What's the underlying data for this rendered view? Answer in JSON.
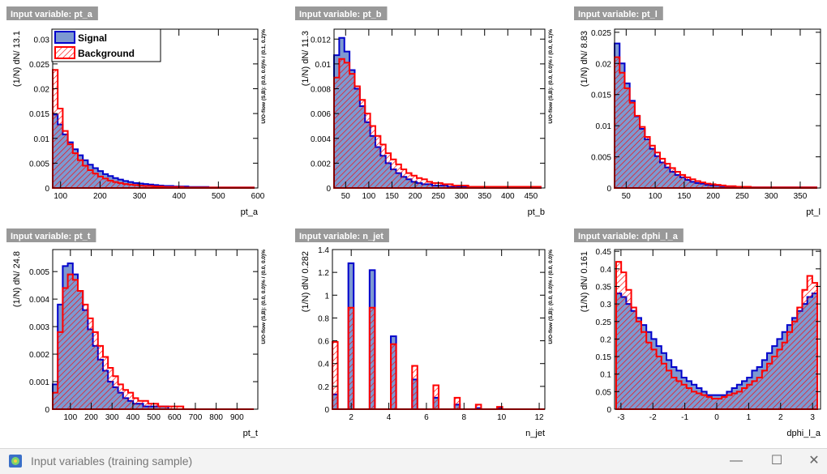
{
  "window": {
    "title": "Input variables (training sample)",
    "minimize_label": "—",
    "maximize_label": "☐",
    "close_label": "✕"
  },
  "colors": {
    "signal_fill": "#7d99d1",
    "signal_line": "#0000cc",
    "background_line": "#ff0000",
    "hatch": "#ff0000",
    "title_bar": "#999999"
  },
  "legend": {
    "signal": "Signal",
    "background": "Background"
  },
  "chart_data": [
    {
      "type": "bar",
      "title": "Input variable: pt_a",
      "xlabel": "pt_a",
      "ylabel": "(1/N) dN/ 13.1",
      "overflow_label": "U/O-flow (S,B): (0.0, 0.0)% / (0.1, 0.2)%",
      "xlim": [
        80,
        600
      ],
      "ylim": [
        0,
        0.032
      ],
      "xticks": [
        "100",
        "200",
        "300",
        "400",
        "500",
        "600"
      ],
      "yticks": [
        "0",
        "0.005",
        "0.01",
        "0.015",
        "0.02",
        "0.025",
        "0.03"
      ],
      "signal": [
        0.0148,
        0.0128,
        0.0108,
        0.0092,
        0.0078,
        0.0066,
        0.0056,
        0.0047,
        0.004,
        0.0034,
        0.0028,
        0.0024,
        0.002,
        0.0017,
        0.0014,
        0.0012,
        0.001,
        0.0009,
        0.0008,
        0.0007,
        0.0006,
        0.0005,
        0.0004,
        0.0004,
        0.0003,
        0.0003,
        0.0003,
        0.0002,
        0.0002,
        0.0002,
        0.0002,
        0.0001,
        0.0001,
        0.0001,
        0.0001,
        0.0001,
        0.0001,
        0.0001,
        0.0001,
        0.0001
      ],
      "background": [
        0.0238,
        0.016,
        0.0115,
        0.0088,
        0.007,
        0.0056,
        0.0045,
        0.0036,
        0.0029,
        0.0023,
        0.0019,
        0.0015,
        0.0012,
        0.001,
        0.0008,
        0.0007,
        0.0006,
        0.0005,
        0.0004,
        0.0004,
        0.0003,
        0.0003,
        0.0002,
        0.0002,
        0.0002,
        0.0002,
        0.0001,
        0.0001,
        0.0001,
        0.0001,
        0.0001,
        0.0001,
        0.0001,
        0.0001,
        0.0001,
        0.0001,
        0.0001,
        0.0001,
        0.0001,
        0.0001
      ]
    },
    {
      "type": "bar",
      "title": "Input variable: pt_b",
      "xlabel": "pt_b",
      "ylabel": "(1/N) dN/ 11.3",
      "overflow_label": "U/O-flow (S,B): (0.0, 0.0)% / (0.0, 0.1)%",
      "xlim": [
        25,
        480
      ],
      "ylim": [
        0,
        0.0128
      ],
      "xticks": [
        "50",
        "100",
        "150",
        "200",
        "250",
        "300",
        "350",
        "400",
        "450"
      ],
      "yticks": [
        "0",
        "0.002",
        "0.004",
        "0.006",
        "0.008",
        "0.01",
        "0.012"
      ],
      "signal": [
        0.0107,
        0.0121,
        0.011,
        0.0095,
        0.008,
        0.0066,
        0.0053,
        0.0042,
        0.0033,
        0.0026,
        0.002,
        0.0015,
        0.0012,
        0.0009,
        0.0007,
        0.0005,
        0.0004,
        0.0003,
        0.0003,
        0.0002,
        0.0002,
        0.0002,
        0.0001,
        0.0001,
        0.0001,
        0.0001,
        0.0001,
        0.0001,
        0.0001,
        0.0001,
        0.0001,
        0.0001,
        0.0001,
        0.0001,
        0.0001,
        0.0001,
        0.0001,
        0.0001,
        0.0001,
        0.0001
      ],
      "background": [
        0.0089,
        0.0104,
        0.0101,
        0.0092,
        0.0082,
        0.0071,
        0.006,
        0.005,
        0.0042,
        0.0035,
        0.0028,
        0.0023,
        0.0019,
        0.0015,
        0.0012,
        0.001,
        0.0008,
        0.0007,
        0.0005,
        0.0004,
        0.0004,
        0.0003,
        0.0003,
        0.0002,
        0.0002,
        0.0002,
        0.0001,
        0.0001,
        0.0001,
        0.0001,
        0.0001,
        0.0001,
        0.0001,
        0.0001,
        0.0001,
        0.0001,
        0.0001,
        0.0001,
        0.0001,
        0.0001
      ]
    },
    {
      "type": "bar",
      "title": "Input variable: pt_l",
      "xlabel": "pt_l",
      "ylabel": "(1/N) dN/ 8.83",
      "overflow_label": "",
      "xlim": [
        30,
        385
      ],
      "ylim": [
        0,
        0.0255
      ],
      "xticks": [
        "50",
        "100",
        "150",
        "200",
        "250",
        "300",
        "350"
      ],
      "yticks": [
        "0",
        "0.005",
        "0.01",
        "0.015",
        "0.02",
        "0.025"
      ],
      "signal": [
        0.0232,
        0.02,
        0.0168,
        0.014,
        0.0115,
        0.0095,
        0.0078,
        0.0063,
        0.0051,
        0.0041,
        0.0033,
        0.0026,
        0.0021,
        0.0017,
        0.0013,
        0.001,
        0.0008,
        0.0007,
        0.0005,
        0.0004,
        0.0004,
        0.0003,
        0.0002,
        0.0002,
        0.0002,
        0.0001,
        0.0001,
        0.0001,
        0.0001,
        0.0001,
        0.0001,
        0.0001,
        0.0001,
        0.0001,
        0.0001,
        0.0001,
        0.0001,
        0.0001,
        0.0001,
        0.0001
      ],
      "background": [
        0.021,
        0.0185,
        0.016,
        0.0137,
        0.0116,
        0.0098,
        0.0082,
        0.0068,
        0.0057,
        0.0047,
        0.0039,
        0.0032,
        0.0026,
        0.0021,
        0.0017,
        0.0014,
        0.0011,
        0.0009,
        0.0007,
        0.0006,
        0.0005,
        0.0004,
        0.0003,
        0.0003,
        0.0002,
        0.0002,
        0.0002,
        0.0001,
        0.0001,
        0.0001,
        0.0001,
        0.0001,
        0.0001,
        0.0001,
        0.0001,
        0.0001,
        0.0001,
        0.0001,
        0.0001,
        0.0001
      ]
    },
    {
      "type": "bar",
      "title": "Input variable: pt_t",
      "xlabel": "pt_t",
      "ylabel": "(1/N) dN/ 24.8",
      "overflow_label": "U/O-flow (S,B): (0.0, 0.0)% / (0.0, 0.0)%",
      "xlim": [
        15,
        1000
      ],
      "ylim": [
        0,
        0.0058
      ],
      "xticks": [
        "100",
        "200",
        "300",
        "400",
        "500",
        "600",
        "700",
        "800",
        "900"
      ],
      "yticks": [
        "0",
        "0.001",
        "0.002",
        "0.003",
        "0.004",
        "0.005"
      ],
      "signal": [
        0.0009,
        0.0038,
        0.0052,
        0.0053,
        0.0049,
        0.0043,
        0.0036,
        0.0029,
        0.0023,
        0.0018,
        0.0014,
        0.001,
        0.0008,
        0.0006,
        0.0004,
        0.0003,
        0.0002,
        0.0002,
        0.0001,
        0.0001,
        0.0001,
        0.0001,
        0.0001,
        0.0,
        0.0,
        0.0,
        0.0,
        0.0,
        0.0,
        0.0,
        0.0,
        0.0,
        0.0,
        0.0,
        0.0,
        0.0,
        0.0,
        0.0,
        0.0,
        0.0
      ],
      "background": [
        0.0006,
        0.0028,
        0.0044,
        0.0049,
        0.0047,
        0.0043,
        0.0038,
        0.0033,
        0.0028,
        0.0023,
        0.0019,
        0.0015,
        0.0012,
        0.0009,
        0.0007,
        0.0006,
        0.0004,
        0.0003,
        0.0003,
        0.0002,
        0.0002,
        0.0001,
        0.0001,
        0.0001,
        0.0001,
        0.0001,
        0.0,
        0.0,
        0.0,
        0.0,
        0.0,
        0.0,
        0.0,
        0.0,
        0.0,
        0.0,
        0.0,
        0.0,
        0.0,
        0.0
      ]
    },
    {
      "type": "bar",
      "title": "Input variable: n_jet",
      "xlabel": "n_jet",
      "ylabel": "(1/N) dN/ 0.282",
      "overflow_label": "U/O-flow (S,B): (0.0, 0.0)% / (0.0, 0.0)%",
      "xlim": [
        1,
        12.3
      ],
      "ylim": [
        0,
        1.4
      ],
      "xticks": [
        "2",
        "4",
        "6",
        "8",
        "10",
        "12"
      ],
      "yticks": [
        "0",
        "0.2",
        "0.4",
        "0.6",
        "0.8",
        "1",
        "1.2",
        "1.4"
      ],
      "signal": [
        0.13,
        0,
        0,
        1.28,
        0,
        0,
        0,
        1.22,
        0,
        0,
        0,
        0.64,
        0,
        0,
        0,
        0.26,
        0,
        0,
        0,
        0.1,
        0,
        0,
        0,
        0.04,
        0,
        0,
        0,
        0.01,
        0,
        0,
        0,
        0.01,
        0,
        0,
        0,
        0,
        0,
        0,
        0,
        0
      ],
      "background": [
        0.59,
        0,
        0,
        0.89,
        0,
        0,
        0,
        0.89,
        0,
        0,
        0,
        0.57,
        0,
        0,
        0,
        0.38,
        0,
        0,
        0,
        0.21,
        0,
        0,
        0,
        0.1,
        0,
        0,
        0,
        0.04,
        0,
        0,
        0,
        0.02,
        0,
        0,
        0,
        0,
        0,
        0,
        0,
        0
      ]
    },
    {
      "type": "bar",
      "title": "Input variable: dphi_l_a",
      "xlabel": "dphi_l_a",
      "ylabel": "(1/N) dN/ 0.161",
      "overflow_label": "",
      "xlim": [
        -3.2,
        3.25
      ],
      "ylim": [
        0,
        0.455
      ],
      "xticks": [
        "-3",
        "-2",
        "-1",
        "0",
        "1",
        "2",
        "3"
      ],
      "yticks": [
        "0",
        "0.05",
        "0.1",
        "0.15",
        "0.2",
        "0.25",
        "0.3",
        "0.35",
        "0.4",
        "0.45"
      ],
      "signal": [
        0.33,
        0.32,
        0.3,
        0.28,
        0.26,
        0.24,
        0.22,
        0.2,
        0.18,
        0.16,
        0.14,
        0.12,
        0.11,
        0.09,
        0.08,
        0.07,
        0.06,
        0.05,
        0.04,
        0.04,
        0.04,
        0.04,
        0.05,
        0.06,
        0.07,
        0.08,
        0.09,
        0.11,
        0.12,
        0.14,
        0.16,
        0.18,
        0.2,
        0.22,
        0.24,
        0.26,
        0.28,
        0.3,
        0.32,
        0.33
      ],
      "background": [
        0.42,
        0.39,
        0.34,
        0.29,
        0.25,
        0.22,
        0.19,
        0.17,
        0.15,
        0.13,
        0.11,
        0.09,
        0.08,
        0.07,
        0.06,
        0.05,
        0.045,
        0.04,
        0.035,
        0.03,
        0.03,
        0.035,
        0.04,
        0.045,
        0.05,
        0.06,
        0.07,
        0.08,
        0.09,
        0.11,
        0.13,
        0.15,
        0.17,
        0.19,
        0.22,
        0.25,
        0.29,
        0.34,
        0.38,
        0.36
      ]
    }
  ]
}
